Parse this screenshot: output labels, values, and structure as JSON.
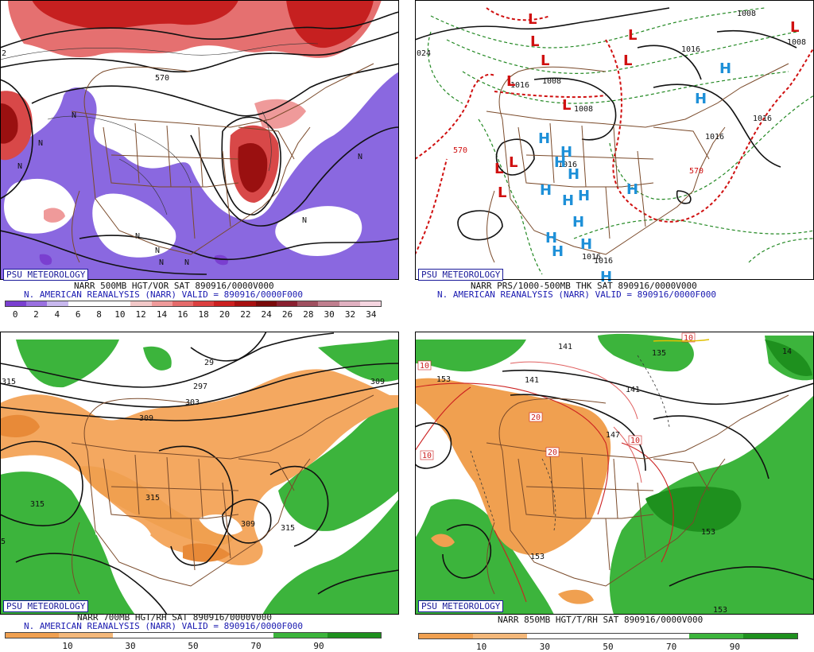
{
  "logo": "PSU METEOROLOGY",
  "panels": [
    {
      "caption1": "NARR 500MB HGT/VOR SAT 890916/0000V000",
      "caption2": "N. AMERICAN REANALYSIS (NARR) VALID = 890916/0000F000",
      "colorbar": {
        "ticks": [
          "0",
          "2",
          "4",
          "6",
          "8",
          "10",
          "12",
          "14",
          "16",
          "18",
          "20",
          "22",
          "24",
          "26",
          "28",
          "30",
          "32",
          "34"
        ],
        "colors": [
          "#7a3fd0",
          "#9a70e0",
          "#c8b8ee",
          "#ffffff",
          "#ffffff",
          "#ffffff",
          "#f2c8c8",
          "#ef9a9a",
          "#e56b6b",
          "#dc4040",
          "#cc2020",
          "#a81010",
          "#7a0a0a",
          "#8a2030",
          "#a05060",
          "#c07f8f",
          "#e0b0c0",
          "#f5d5e0"
        ]
      },
      "labels": [
        "570",
        "N",
        "N",
        "N",
        "N",
        "N",
        "N",
        "N",
        "N",
        "N",
        "2"
      ]
    },
    {
      "caption1": "NARR PRS/1000-500MB THK SAT 890916/0000V000",
      "caption2": "N. AMERICAN REANALYSIS (NARR) VALID = 890916/0000F000",
      "labels": [
        "1008",
        "1016",
        "1016",
        "1016",
        "1016",
        "1008",
        "1008",
        "1016",
        "1016",
        "1016",
        "570",
        "570",
        "024",
        "1008"
      ],
      "lows": [
        "L",
        "L",
        "L",
        "L",
        "L",
        "L",
        "L",
        "L",
        "L",
        "L",
        "L"
      ],
      "highs": [
        "H",
        "H",
        "H",
        "H",
        "H",
        "H",
        "H",
        "H",
        "H",
        "H",
        "H",
        "H",
        "H",
        "H",
        "H"
      ]
    },
    {
      "caption1": "NARR 700MB HGT/RH SAT 890916/0000V000",
      "caption2": "N. AMERICAN REANALYSIS (NARR) VALID = 890916/0000F000",
      "colorbar": {
        "ticks": [
          "10",
          "30",
          "50",
          "70",
          "90"
        ],
        "colors": [
          "#f0a050",
          "#f4b87a",
          "#ffffff",
          "#ffffff",
          "#ffffff",
          "#3cb43c",
          "#1e901e"
        ]
      },
      "labels": [
        "315",
        "29",
        "297",
        "303",
        "309",
        "315",
        "315",
        "309",
        "315",
        "309",
        "5"
      ]
    },
    {
      "caption1": "NARR 850MB HGT/T/RH SAT 890916/0000V000",
      "caption2": "",
      "colorbar": {
        "ticks": [
          "10",
          "30",
          "50",
          "70",
          "90"
        ],
        "colors": [
          "#f0a050",
          "#f4b87a",
          "#ffffff",
          "#ffffff",
          "#ffffff",
          "#3cb43c",
          "#1e901e"
        ]
      },
      "labels": [
        "153",
        "141",
        "141",
        "135",
        "147",
        "141",
        "153",
        "153",
        "153",
        "10",
        "10",
        "20",
        "20",
        "10",
        "10",
        "14"
      ]
    }
  ]
}
